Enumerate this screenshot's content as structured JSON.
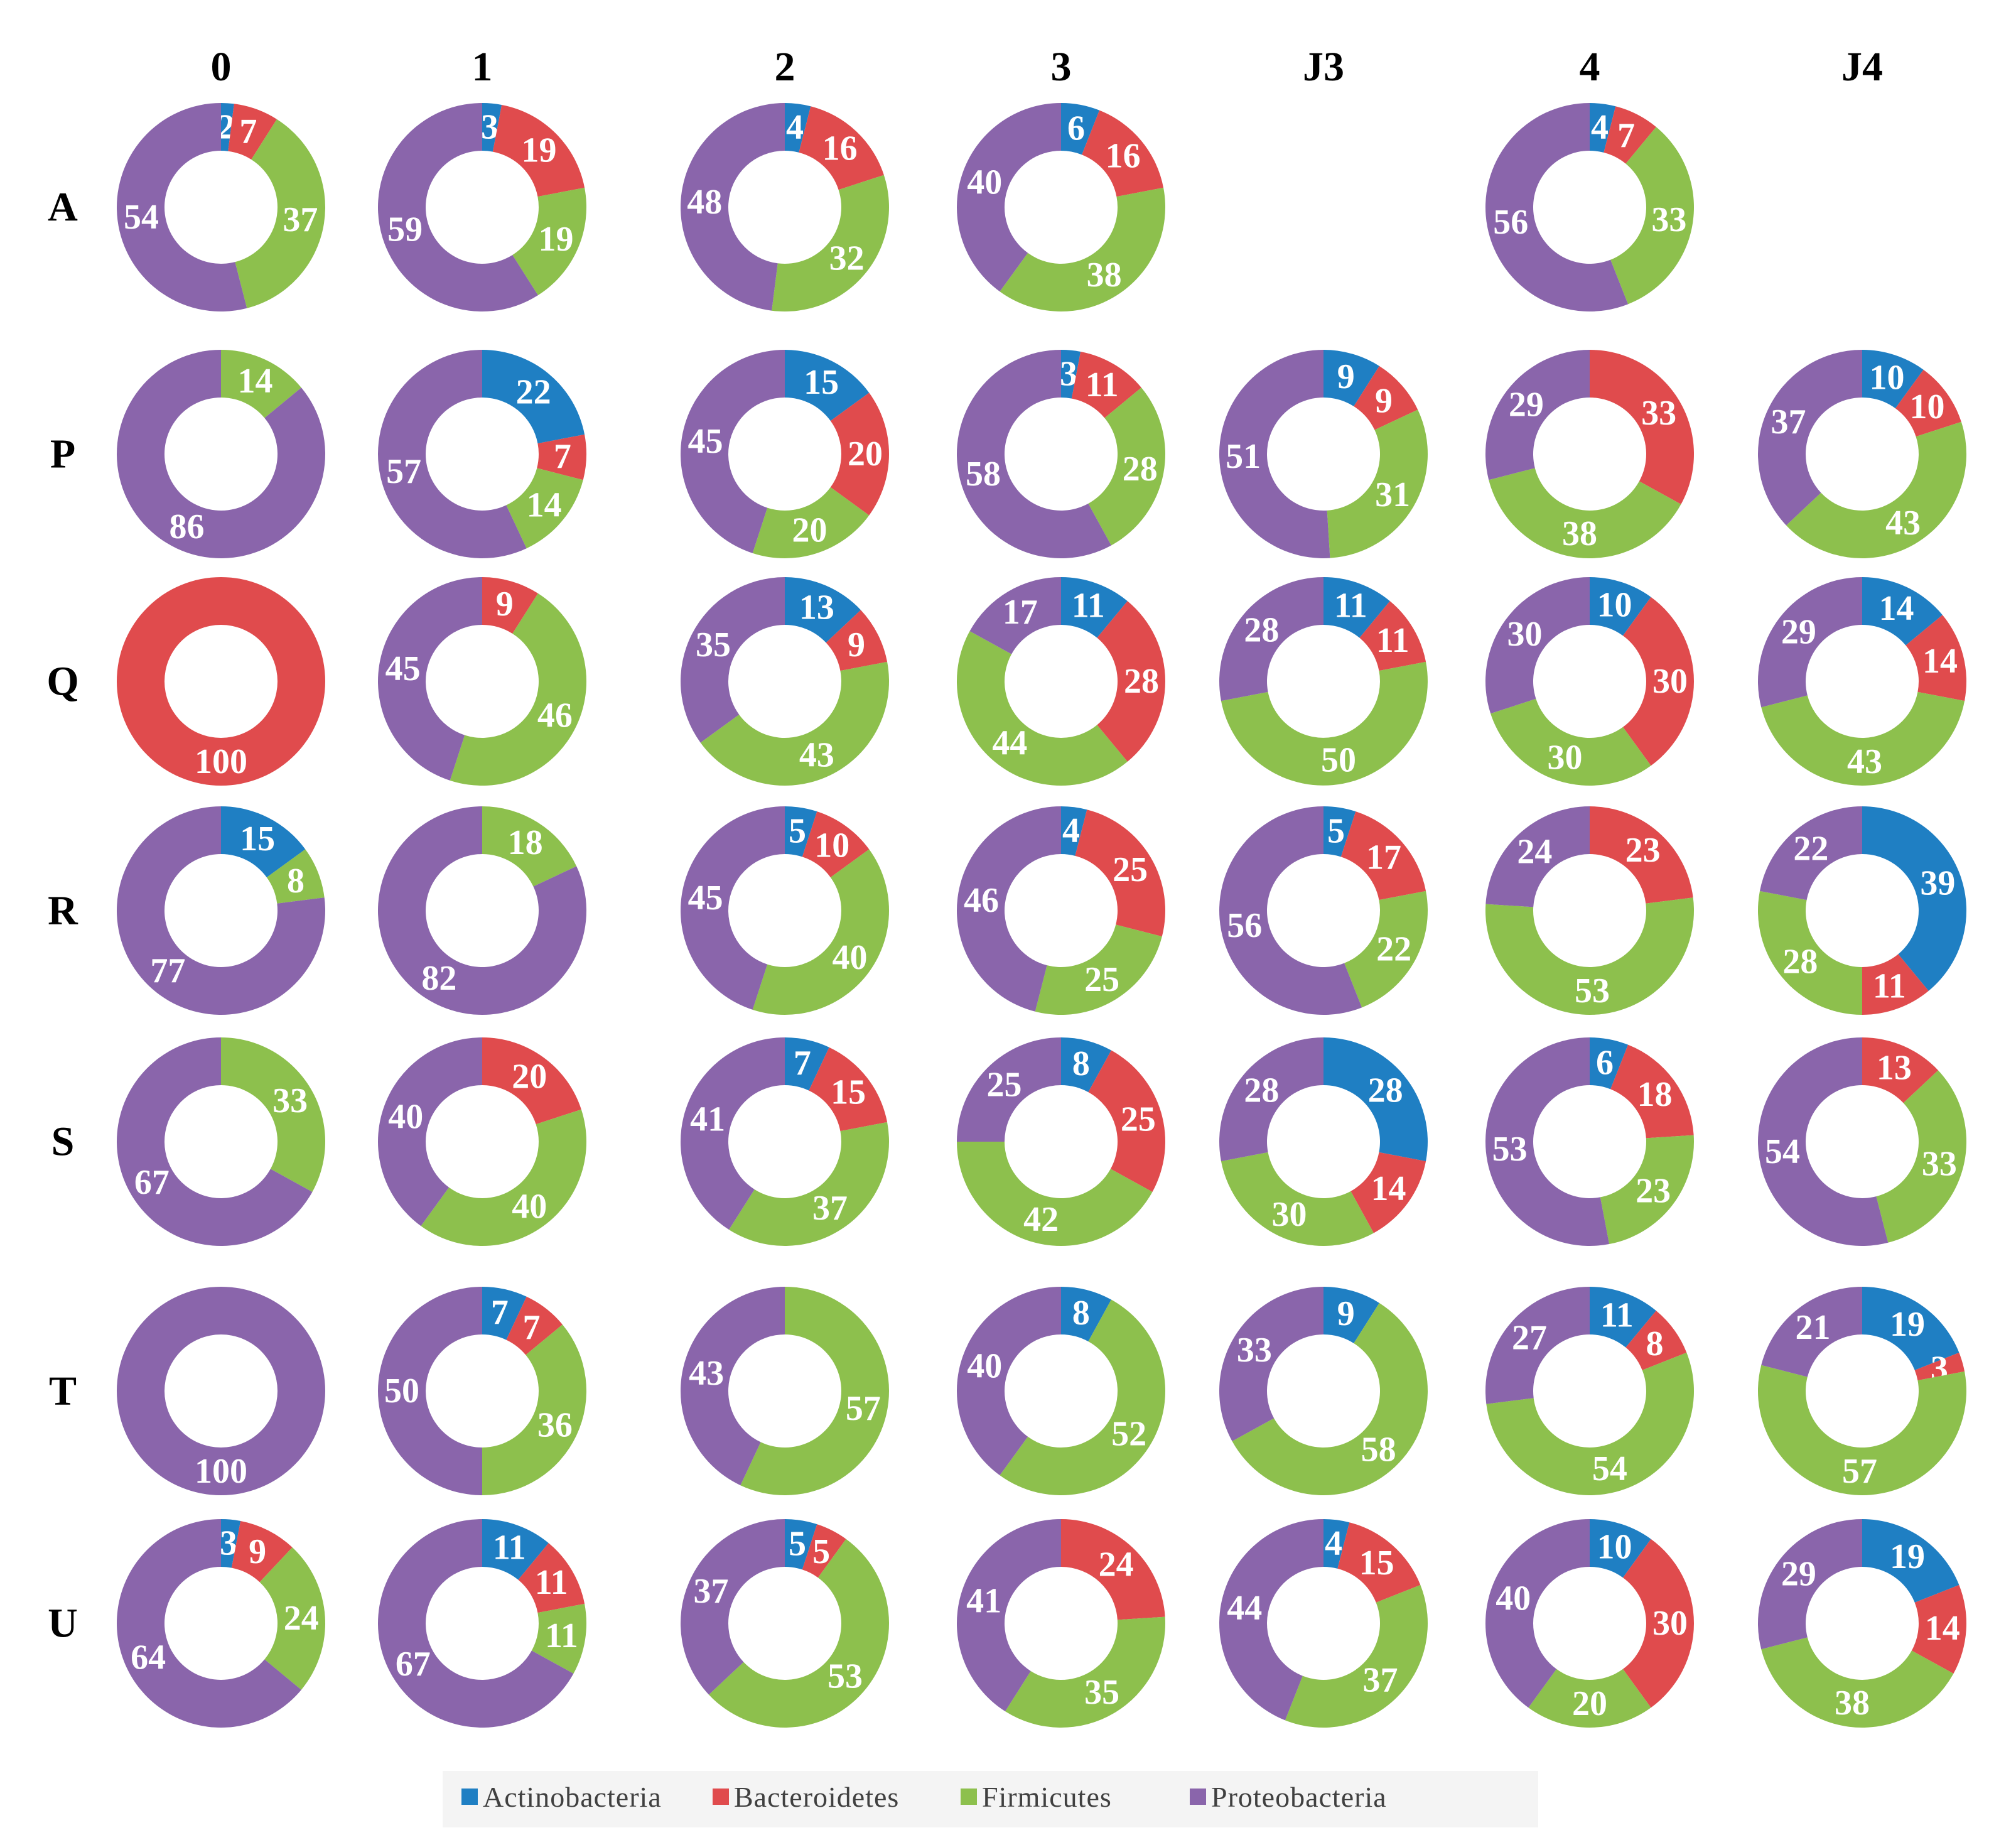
{
  "chart_data": {
    "type": "donut-grid",
    "columns": [
      "0",
      "1",
      "2",
      "3",
      "J3",
      "4",
      "J4"
    ],
    "rows": [
      "A",
      "P",
      "Q",
      "R",
      "S",
      "T",
      "U"
    ],
    "series": [
      {
        "name": "Actinobacteria",
        "color": "#1f7fc3"
      },
      {
        "name": "Bacteroidetes",
        "color": "#e04b4d"
      },
      {
        "name": "Firmicutes",
        "color": "#8dc04d"
      },
      {
        "name": "Proteobacteria",
        "color": "#8a65ab"
      }
    ],
    "values": {
      "A": [
        [
          2,
          7,
          37,
          54
        ],
        [
          3,
          19,
          19,
          59
        ],
        [
          4,
          16,
          32,
          48
        ],
        [
          6,
          16,
          38,
          40
        ],
        null,
        [
          4,
          7,
          33,
          56
        ],
        null
      ],
      "P": [
        [
          0,
          0,
          14,
          86
        ],
        [
          22,
          7,
          14,
          57
        ],
        [
          15,
          20,
          20,
          45
        ],
        [
          3,
          11,
          28,
          58
        ],
        [
          9,
          9,
          31,
          51
        ],
        [
          0,
          33,
          38,
          29
        ],
        [
          10,
          10,
          43,
          37
        ]
      ],
      "Q": [
        [
          0,
          100,
          0,
          0
        ],
        [
          0,
          9,
          46,
          45
        ],
        [
          13,
          9,
          43,
          35
        ],
        [
          11,
          28,
          44,
          17
        ],
        [
          11,
          11,
          50,
          28
        ],
        [
          10,
          30,
          30,
          30
        ],
        [
          14,
          14,
          43,
          29
        ]
      ],
      "R": [
        [
          15,
          0,
          8,
          77
        ],
        [
          0,
          0,
          18,
          82
        ],
        [
          5,
          10,
          40,
          45
        ],
        [
          4,
          25,
          25,
          46
        ],
        [
          5,
          17,
          22,
          56
        ],
        [
          0,
          23,
          53,
          24
        ],
        [
          39,
          11,
          28,
          22
        ]
      ],
      "S": [
        [
          0,
          0,
          33,
          67
        ],
        [
          0,
          20,
          40,
          40
        ],
        [
          7,
          15,
          37,
          41
        ],
        [
          8,
          25,
          42,
          25
        ],
        [
          28,
          14,
          30,
          28
        ],
        [
          6,
          18,
          23,
          53
        ],
        [
          0,
          13,
          33,
          54
        ]
      ],
      "T": [
        [
          0,
          0,
          0,
          100
        ],
        [
          7,
          7,
          36,
          50
        ],
        [
          0,
          0,
          57,
          43
        ],
        [
          8,
          0,
          52,
          40
        ],
        [
          9,
          0,
          58,
          33
        ],
        [
          11,
          8,
          54,
          27
        ],
        [
          19,
          3,
          57,
          21
        ]
      ],
      "U": [
        [
          3,
          9,
          24,
          64
        ],
        [
          11,
          11,
          11,
          67
        ],
        [
          5,
          5,
          53,
          37
        ],
        [
          0,
          24,
          35,
          41
        ],
        [
          4,
          15,
          37,
          44
        ],
        [
          10,
          30,
          20,
          40
        ],
        [
          19,
          14,
          38,
          29
        ]
      ]
    },
    "legend": [
      "Actinobacteria",
      "Bacteroidetes",
      "Firmicutes",
      "Proteobacteria"
    ],
    "legend_position": "bottom-center"
  }
}
